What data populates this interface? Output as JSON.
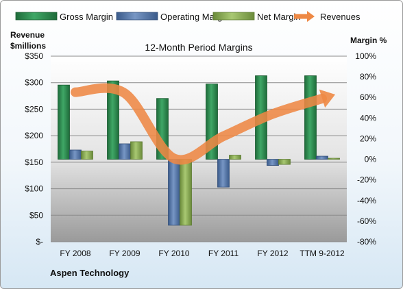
{
  "chart_data": {
    "type": "bar",
    "title": "12-Month Period Margins",
    "footer": "Aspen Technology",
    "categories": [
      "FY 2008",
      "FY 2009",
      "FY 2010",
      "FY 2011",
      "FY 2012",
      "TTM 9-2012"
    ],
    "y_left": {
      "label_line1": "Revenue",
      "label_line2": "$millions",
      "range": [
        0,
        350
      ],
      "ticks": [
        0,
        50,
        100,
        150,
        200,
        250,
        300,
        350
      ],
      "tick_labels": [
        "$-",
        "$50",
        "$100",
        "$150",
        "$200",
        "$250",
        "$300",
        "$350"
      ]
    },
    "y_right": {
      "label": "Margin %",
      "range": [
        -80,
        100
      ],
      "ticks": [
        -80,
        -60,
        -40,
        -20,
        0,
        20,
        40,
        60,
        80,
        100
      ],
      "tick_labels": [
        "-80%",
        "-60%",
        "-40%",
        "-20%",
        "0%",
        "20%",
        "40%",
        "60%",
        "80%",
        "100%"
      ]
    },
    "series": [
      {
        "name": "Gross Margin",
        "axis": "right",
        "kind": "bar",
        "color": "#2e8b4f",
        "values": [
          72,
          76,
          59,
          73,
          81,
          81
        ]
      },
      {
        "name": "Operating Margin",
        "axis": "right",
        "kind": "bar",
        "color": "#5577aa",
        "values": [
          9,
          15,
          -64,
          -27,
          -6,
          3
        ]
      },
      {
        "name": "Net Margin",
        "axis": "right",
        "kind": "bar",
        "color": "#8fb058",
        "values": [
          8,
          17,
          -64,
          4,
          -5,
          1
        ]
      },
      {
        "name": "Revenues",
        "axis": "left",
        "kind": "line",
        "color": "#ee8844",
        "values": [
          282,
          280,
          157,
          199,
          241,
          270
        ]
      }
    ],
    "legend_position": "top",
    "grid": true
  }
}
